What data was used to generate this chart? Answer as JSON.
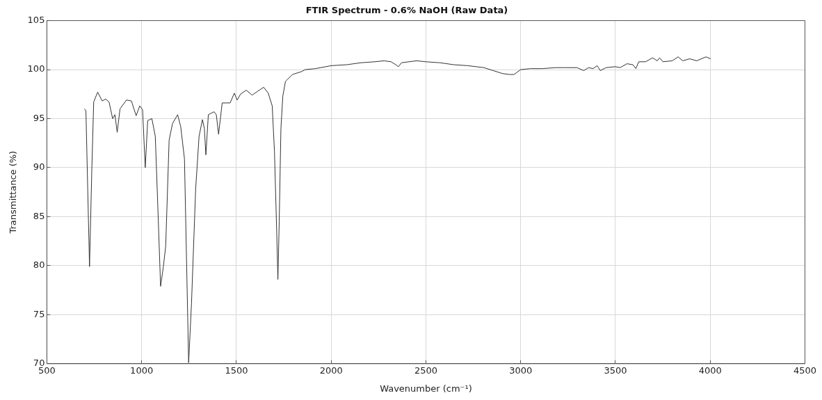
{
  "chart_data": {
    "type": "line",
    "title": "FTIR Spectrum - 0.6% NaOH (Raw Data)",
    "xlabel": "Wavenumber (cm⁻¹)",
    "ylabel": "Transmittance (%)",
    "xlim": [
      500,
      4500
    ],
    "xticks": [
      500,
      1000,
      1500,
      2000,
      2500,
      3000,
      3500,
      4000,
      4500
    ],
    "ylim": [
      70,
      105
    ],
    "yticks": [
      70,
      75,
      80,
      85,
      90,
      95,
      100,
      105
    ],
    "grid": true,
    "marker": "none",
    "line_style": "solid",
    "series": [
      {
        "color": "#333333",
        "x": [
          698,
          706,
          725,
          737,
          747,
          768,
          792,
          810,
          828,
          847,
          859,
          871,
          886,
          920,
          946,
          971,
          990,
          1005,
          1019,
          1032,
          1054,
          1072,
          1084,
          1100,
          1114,
          1127,
          1145,
          1163,
          1190,
          1206,
          1226,
          1248,
          1263,
          1285,
          1303,
          1321,
          1331,
          1339,
          1352,
          1382,
          1394,
          1406,
          1425,
          1467,
          1489,
          1504,
          1522,
          1552,
          1583,
          1613,
          1644,
          1668,
          1689,
          1701,
          1713,
          1719,
          1726,
          1735,
          1745,
          1759,
          1796,
          1844,
          1863,
          1917,
          2000,
          2083,
          2157,
          2230,
          2279,
          2316,
          2341,
          2355,
          2371,
          2451,
          2500,
          2574,
          2647,
          2721,
          2806,
          2855,
          2904,
          2941,
          2965,
          3000,
          3051,
          3113,
          3186,
          3235,
          3297,
          3333,
          3358,
          3382,
          3404,
          3420,
          3451,
          3500,
          3525,
          3561,
          3592,
          3608,
          3623,
          3659,
          3696,
          3721,
          3733,
          3751,
          3800,
          3831,
          3855,
          3892,
          3929,
          3978,
          4002
        ],
        "values": [
          96.0,
          95.8,
          79.9,
          89.7,
          96.7,
          97.7,
          96.8,
          97.0,
          96.7,
          95.0,
          95.4,
          93.6,
          96.0,
          96.9,
          96.8,
          95.3,
          96.3,
          95.9,
          90.0,
          94.8,
          95.0,
          93.2,
          86.8,
          77.9,
          79.8,
          82.0,
          92.8,
          94.5,
          95.4,
          94.2,
          90.9,
          70.1,
          76.1,
          87.8,
          93.2,
          94.9,
          94.0,
          91.3,
          95.4,
          95.7,
          95.4,
          93.4,
          96.6,
          96.6,
          97.6,
          96.9,
          97.5,
          97.9,
          97.4,
          97.8,
          98.2,
          97.6,
          96.3,
          91.6,
          83.2,
          78.6,
          84.5,
          94.0,
          97.3,
          98.8,
          99.5,
          99.8,
          100.0,
          100.1,
          100.4,
          100.5,
          100.7,
          100.8,
          100.9,
          100.8,
          100.5,
          100.3,
          100.7,
          100.9,
          100.8,
          100.7,
          100.5,
          100.4,
          100.2,
          99.9,
          99.6,
          99.5,
          99.5,
          100.0,
          100.1,
          100.1,
          100.2,
          100.2,
          100.2,
          99.9,
          100.2,
          100.1,
          100.4,
          99.9,
          100.2,
          100.3,
          100.2,
          100.6,
          100.5,
          100.1,
          100.8,
          100.8,
          101.2,
          100.9,
          101.2,
          100.8,
          100.9,
          101.3,
          100.9,
          101.1,
          100.9,
          101.3,
          101.1
        ]
      }
    ]
  }
}
